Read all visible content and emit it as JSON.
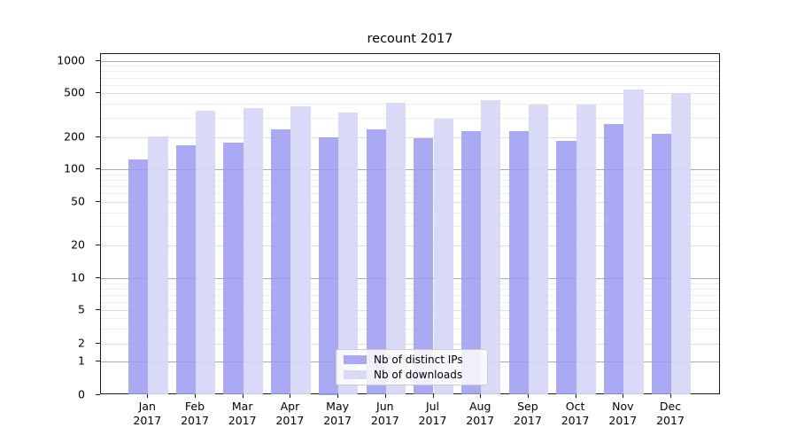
{
  "chart_data": {
    "type": "bar",
    "title": "recount 2017",
    "x_categories": [
      "Jan",
      "Feb",
      "Mar",
      "Apr",
      "May",
      "Jun",
      "Jul",
      "Aug",
      "Sep",
      "Oct",
      "Nov",
      "Dec"
    ],
    "x_year": "2017",
    "yscale": "symlog",
    "ylim": [
      0,
      1000
    ],
    "yticks": [
      1000,
      500,
      200,
      100,
      50,
      20,
      10,
      5,
      2,
      1,
      0
    ],
    "grid": true,
    "legend_position": "lower center",
    "series": [
      {
        "name": "Nb of distinct IPs",
        "color": "#9b9bf2",
        "values": [
          125,
          170,
          180,
          235,
          200,
          238,
          196,
          227,
          227,
          185,
          265,
          215
        ]
      },
      {
        "name": "Nb of downloads",
        "color": "#d6d6f8",
        "values": [
          205,
          350,
          370,
          380,
          335,
          410,
          295,
          430,
          395,
          395,
          540,
          505
        ]
      }
    ]
  }
}
